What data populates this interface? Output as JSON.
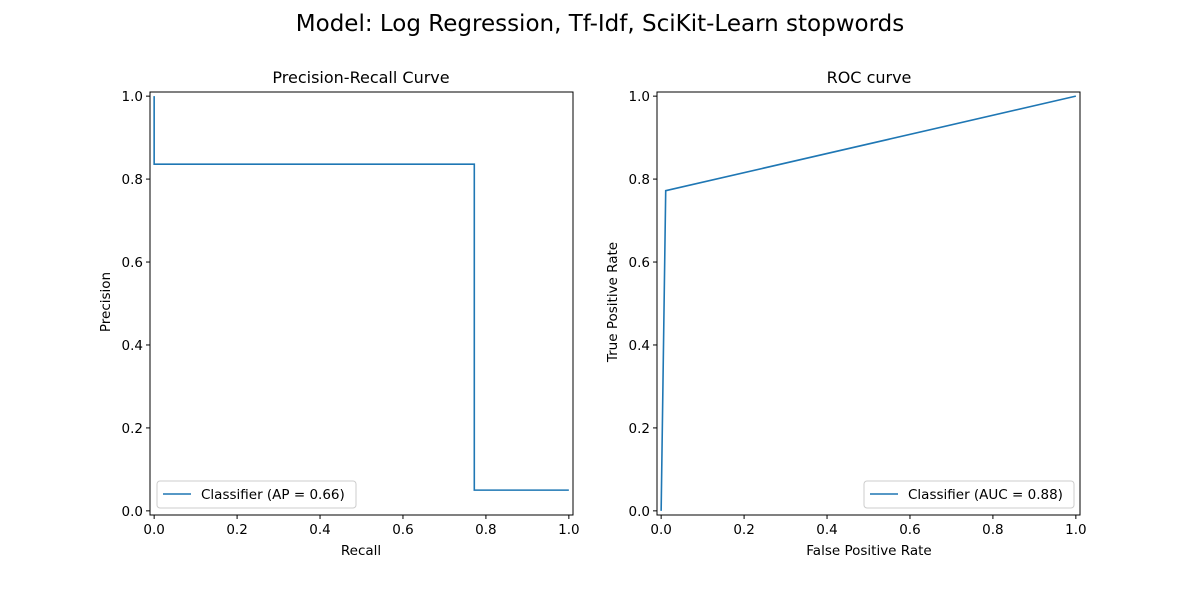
{
  "figure": {
    "suptitle": "Model: Log Regression, Tf-Idf, SciKit-Learn stopwords",
    "line_color": "#1f77b4"
  },
  "chart_data": [
    {
      "type": "line",
      "title": "Precision-Recall Curve",
      "xlabel": "Recall",
      "ylabel": "Precision",
      "xlim": [
        -0.01,
        1.01
      ],
      "ylim": [
        -0.01,
        1.01
      ],
      "xticks": [
        "0.0",
        "0.2",
        "0.4",
        "0.6",
        "0.8",
        "1.0"
      ],
      "yticks": [
        "0.0",
        "0.2",
        "0.4",
        "0.6",
        "0.8",
        "1.0"
      ],
      "grid": false,
      "legend_position": "lower-left",
      "series": [
        {
          "name": "Classifier (AP = 0.66)",
          "drawstyle": "steps-post",
          "x": [
            0.0,
            0.0,
            0.772,
            0.772,
            1.0
          ],
          "y": [
            1.0,
            0.836,
            0.836,
            0.05,
            0.05
          ]
        }
      ]
    },
    {
      "type": "line",
      "title": "ROC curve",
      "xlabel": "False Positive Rate",
      "ylabel": "True Positive Rate",
      "xlim": [
        -0.01,
        1.01
      ],
      "ylim": [
        -0.01,
        1.01
      ],
      "xticks": [
        "0.0",
        "0.2",
        "0.4",
        "0.6",
        "0.8",
        "1.0"
      ],
      "yticks": [
        "0.0",
        "0.2",
        "0.4",
        "0.6",
        "0.8",
        "1.0"
      ],
      "grid": false,
      "legend_position": "lower-right",
      "series": [
        {
          "name": "Classifier (AUC = 0.88)",
          "drawstyle": "default",
          "x": [
            0.0,
            0.011,
            1.0
          ],
          "y": [
            0.0,
            0.772,
            1.0
          ]
        }
      ]
    }
  ]
}
